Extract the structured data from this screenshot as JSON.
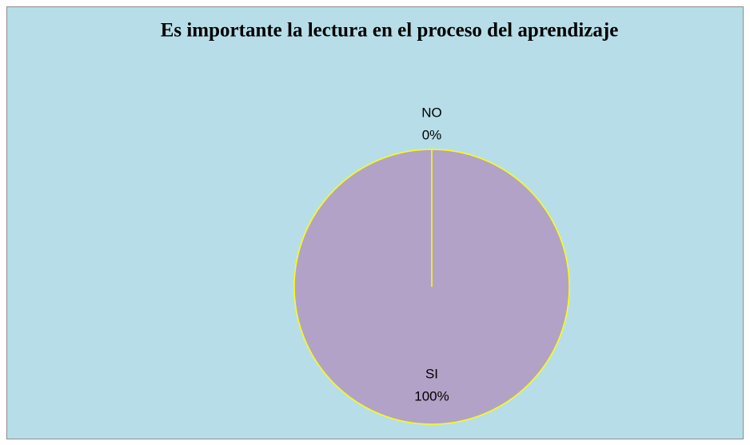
{
  "chart_data": {
    "type": "pie",
    "title": "Es importante la lectura en el proceso del aprendizaje",
    "categories": [
      "SI",
      "NO"
    ],
    "values": [
      100,
      0
    ],
    "value_labels": [
      "100%",
      "0%"
    ],
    "colors": [
      "#b3a2c7",
      "#b3a2c7"
    ],
    "edge_color": "#ffff00",
    "background": "#b7dee8"
  }
}
